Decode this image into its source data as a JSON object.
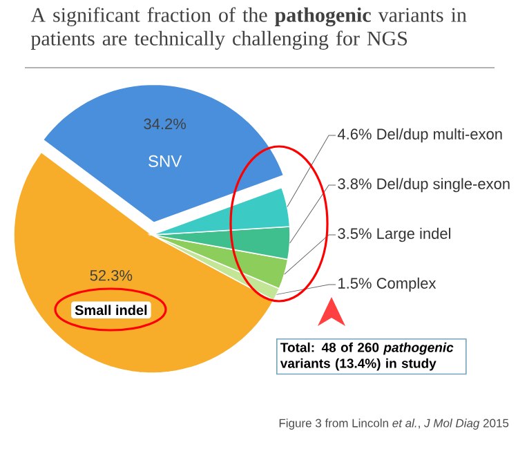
{
  "chart_data": {
    "type": "pie",
    "title": "A significant fraction of the **pathogenic** variants in patients are technically challenging for NGS",
    "categories": [
      "SNV",
      "Small indel",
      "Complex",
      "Large indel",
      "Del/dup single-exon",
      "Del/dup multi-exon"
    ],
    "values": [
      34.2,
      52.3,
      1.5,
      3.5,
      3.8,
      4.6
    ],
    "value_labels": [
      "34.2%",
      "52.3%",
      "1.5%",
      "3.5%",
      "3.8%",
      "4.6%"
    ],
    "colors": [
      "#4a8fdc",
      "#f7ad2a",
      "#c2e596",
      "#8ccd5c",
      "#3fbf8e",
      "#3ccbc4"
    ],
    "annotations": [
      "Total: 48 of 260 *pathogenic* variants (13.4%) in study",
      "Figure 3 from Lincoln *et al.*, *J Mol Diag* 2015"
    ]
  }
}
